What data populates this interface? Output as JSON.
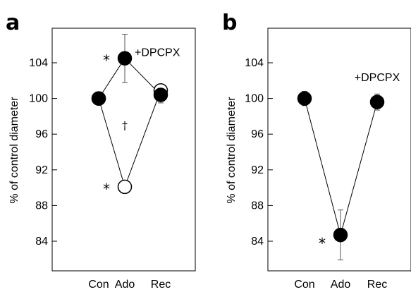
{
  "chart_data": [
    {
      "panel": "a",
      "type": "line",
      "title": "",
      "xlabel": "",
      "ylabel": "% of control diameter",
      "categories": [
        "Con",
        "Ado",
        "Rec"
      ],
      "yticks": [
        84,
        88,
        92,
        96,
        100,
        104
      ],
      "ylim": [
        80,
        108
      ],
      "series": [
        {
          "name": "+DPCPX",
          "marker": "filled-circle",
          "values": [
            100.0,
            104.5,
            100.4
          ],
          "errors": [
            0.6,
            2.7,
            0.9
          ]
        },
        {
          "name": "",
          "marker": "open-circle",
          "values": [
            100.0,
            90.1,
            100.9
          ],
          "errors": [
            0.6,
            0.0,
            0.6
          ]
        }
      ],
      "annotations": [
        {
          "text": "*",
          "category": "Ado",
          "y": 104.5,
          "anchor": "left"
        },
        {
          "text": "*",
          "category": "Ado",
          "y": 90.1,
          "anchor": "left"
        },
        {
          "text": "†",
          "category": "Ado",
          "y": 97.0,
          "anchor": "center"
        },
        {
          "text": "+DPCPX",
          "category": "Ado",
          "y": 104.5,
          "anchor": "right"
        }
      ],
      "grid": false,
      "legend": "none"
    },
    {
      "panel": "b",
      "type": "line",
      "title": "",
      "xlabel": "",
      "ylabel": "% of control diameter",
      "categories": [
        "Con",
        "Ado",
        "Rec"
      ],
      "yticks": [
        84,
        88,
        92,
        96,
        100,
        104
      ],
      "ylim": [
        80,
        108
      ],
      "series": [
        {
          "name": "+DPCPX",
          "marker": "filled-circle",
          "values": [
            100.0,
            84.7,
            99.6
          ],
          "errors": [
            0.8,
            2.8,
            0.9
          ]
        }
      ],
      "annotations": [
        {
          "text": "*",
          "category": "Ado",
          "y": 84.0,
          "anchor": "left"
        },
        {
          "text": "+DPCPX",
          "category": "Rec",
          "y": 101.0,
          "anchor": "above"
        }
      ],
      "grid": false,
      "legend": "none"
    }
  ]
}
